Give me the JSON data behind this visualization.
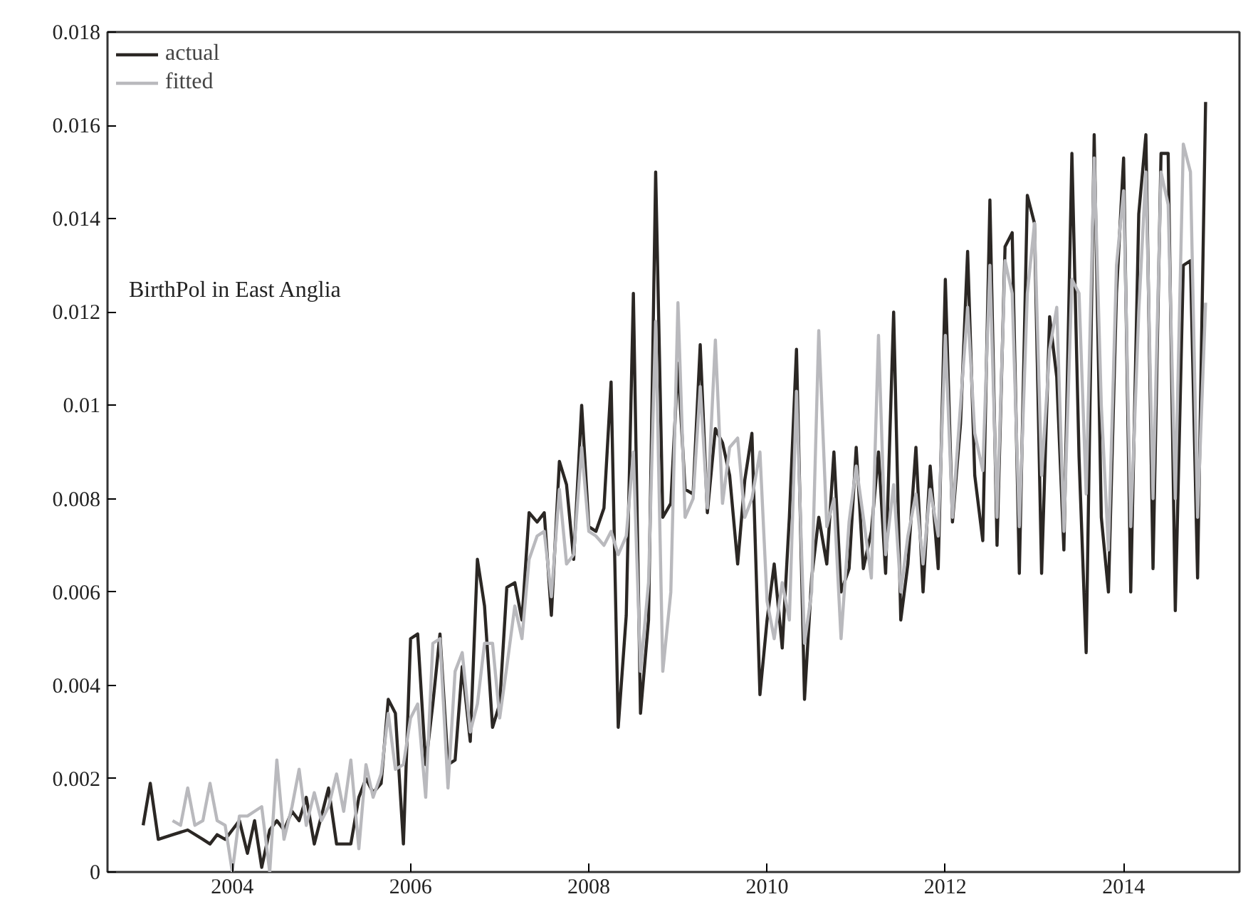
{
  "chart_data": {
    "type": "line",
    "annotations": [
      "BirthPol in East Anglia"
    ],
    "xlim": [
      2002.6,
      2015.3
    ],
    "xticks": [
      2004,
      2006,
      2008,
      2010,
      2012,
      2014
    ],
    "ylim": [
      0,
      0.018
    ],
    "yticks": [
      0,
      0.002,
      0.004,
      0.006,
      0.008,
      0.01,
      0.012,
      0.014,
      0.016,
      0.018
    ],
    "grid": false,
    "legend": "top left",
    "line_style": "solid",
    "marker": "none",
    "series": [
      {
        "name": "actual",
        "color": "#2b2724",
        "x": [
          2003.0,
          2003.08,
          2003.17,
          2003.33,
          2003.5,
          2003.67,
          2003.75,
          2003.83,
          2003.92,
          2004.0,
          2004.08,
          2004.17,
          2004.25,
          2004.33,
          2004.42,
          2004.5,
          2004.58,
          2004.67,
          2004.75,
          2004.83,
          2004.92,
          2005.0,
          2005.08,
          2005.17,
          2005.25,
          2005.33,
          2005.42,
          2005.5,
          2005.58,
          2005.67,
          2005.75,
          2005.83,
          2005.92,
          2006.0,
          2006.08,
          2006.17,
          2006.25,
          2006.33,
          2006.42,
          2006.5,
          2006.58,
          2006.67,
          2006.75,
          2006.83,
          2006.92,
          2007.0,
          2007.08,
          2007.17,
          2007.25,
          2007.33,
          2007.42,
          2007.5,
          2007.58,
          2007.67,
          2007.75,
          2007.83,
          2007.92,
          2008.0,
          2008.08,
          2008.17,
          2008.25,
          2008.33,
          2008.42,
          2008.5,
          2008.58,
          2008.67,
          2008.75,
          2008.83,
          2008.92,
          2009.0,
          2009.08,
          2009.17,
          2009.25,
          2009.33,
          2009.42,
          2009.5,
          2009.58,
          2009.67,
          2009.75,
          2009.83,
          2009.92,
          2010.0,
          2010.08,
          2010.17,
          2010.25,
          2010.33,
          2010.42,
          2010.5,
          2010.58,
          2010.67,
          2010.75,
          2010.83,
          2010.92,
          2011.0,
          2011.08,
          2011.17,
          2011.25,
          2011.33,
          2011.42,
          2011.5,
          2011.58,
          2011.67,
          2011.75,
          2011.83,
          2011.92,
          2012.0,
          2012.08,
          2012.17,
          2012.25,
          2012.33,
          2012.42,
          2012.5,
          2012.58,
          2012.67,
          2012.75,
          2012.83,
          2012.92,
          2013.0,
          2013.08,
          2013.17,
          2013.25,
          2013.33,
          2013.42,
          2013.5,
          2013.58,
          2013.67,
          2013.75,
          2013.83,
          2013.92,
          2014.0,
          2014.08,
          2014.17,
          2014.25,
          2014.33,
          2014.42,
          2014.5,
          2014.58,
          2014.67,
          2014.75,
          2014.83,
          2014.92
        ],
        "values": [
          0.001,
          0.0019,
          0.0007,
          0.0008,
          0.0009,
          0.0007,
          0.0006,
          0.0008,
          0.0007,
          0.0009,
          0.0011,
          0.0004,
          0.0011,
          0.0001,
          0.0009,
          0.0011,
          0.0009,
          0.0013,
          0.0011,
          0.0016,
          0.0006,
          0.0012,
          0.0018,
          0.0006,
          0.0006,
          0.0006,
          0.0016,
          0.002,
          0.0017,
          0.0019,
          0.0037,
          0.0034,
          0.0006,
          0.005,
          0.0051,
          0.0023,
          0.0036,
          0.0051,
          0.0023,
          0.0024,
          0.0044,
          0.0028,
          0.0067,
          0.0057,
          0.0031,
          0.0036,
          0.0061,
          0.0062,
          0.0054,
          0.0077,
          0.0075,
          0.0077,
          0.0055,
          0.0088,
          0.0083,
          0.0067,
          0.01,
          0.0074,
          0.0073,
          0.0078,
          0.0105,
          0.0031,
          0.0055,
          0.0124,
          0.0034,
          0.0054,
          0.015,
          0.0076,
          0.0079,
          0.0109,
          0.0082,
          0.0081,
          0.0113,
          0.0077,
          0.0095,
          0.0092,
          0.0085,
          0.0066,
          0.0084,
          0.0094,
          0.0038,
          0.0054,
          0.0066,
          0.0048,
          0.0076,
          0.0112,
          0.0037,
          0.0063,
          0.0076,
          0.0066,
          0.009,
          0.006,
          0.0065,
          0.0091,
          0.0065,
          0.0073,
          0.009,
          0.0064,
          0.012,
          0.0054,
          0.0066,
          0.0091,
          0.006,
          0.0087,
          0.0065,
          0.0127,
          0.0075,
          0.0096,
          0.0133,
          0.0085,
          0.0071,
          0.0144,
          0.007,
          0.0134,
          0.0137,
          0.0064,
          0.0145,
          0.0139,
          0.0064,
          0.0119,
          0.0106,
          0.0069,
          0.0154,
          0.0089,
          0.0047,
          0.0158,
          0.0076,
          0.006,
          0.0124,
          0.0153,
          0.006,
          0.0141,
          0.0158,
          0.0065,
          0.0154,
          0.0154,
          0.0056,
          0.013,
          0.0131,
          0.0063,
          0.0165
        ]
      },
      {
        "name": "fitted",
        "color": "#b9b9bd",
        "x": [
          2003.33,
          2003.42,
          2003.5,
          2003.58,
          2003.67,
          2003.75,
          2003.83,
          2003.92,
          2004.0,
          2004.08,
          2004.17,
          2004.25,
          2004.33,
          2004.42,
          2004.5,
          2004.58,
          2004.67,
          2004.75,
          2004.83,
          2004.92,
          2005.0,
          2005.08,
          2005.17,
          2005.25,
          2005.33,
          2005.42,
          2005.5,
          2005.58,
          2005.67,
          2005.75,
          2005.83,
          2005.92,
          2006.0,
          2006.08,
          2006.17,
          2006.25,
          2006.33,
          2006.42,
          2006.5,
          2006.58,
          2006.67,
          2006.75,
          2006.83,
          2006.92,
          2007.0,
          2007.08,
          2007.17,
          2007.25,
          2007.33,
          2007.42,
          2007.5,
          2007.58,
          2007.67,
          2007.75,
          2007.83,
          2007.92,
          2008.0,
          2008.08,
          2008.17,
          2008.25,
          2008.33,
          2008.42,
          2008.5,
          2008.58,
          2008.67,
          2008.75,
          2008.83,
          2008.92,
          2009.0,
          2009.08,
          2009.17,
          2009.25,
          2009.33,
          2009.42,
          2009.5,
          2009.58,
          2009.67,
          2009.75,
          2009.83,
          2009.92,
          2010.0,
          2010.08,
          2010.17,
          2010.25,
          2010.33,
          2010.42,
          2010.5,
          2010.58,
          2010.67,
          2010.75,
          2010.83,
          2010.92,
          2011.0,
          2011.08,
          2011.17,
          2011.25,
          2011.33,
          2011.42,
          2011.5,
          2011.58,
          2011.67,
          2011.75,
          2011.83,
          2011.92,
          2012.0,
          2012.08,
          2012.17,
          2012.25,
          2012.33,
          2012.42,
          2012.5,
          2012.58,
          2012.67,
          2012.75,
          2012.83,
          2012.92,
          2013.0,
          2013.08,
          2013.17,
          2013.25,
          2013.33,
          2013.42,
          2013.5,
          2013.58,
          2013.67,
          2013.75,
          2013.83,
          2013.92,
          2014.0,
          2014.08,
          2014.17,
          2014.25,
          2014.33,
          2014.42,
          2014.5,
          2014.58,
          2014.67,
          2014.75,
          2014.83,
          2014.92
        ],
        "values": [
          0.0011,
          0.001,
          0.0018,
          0.001,
          0.0011,
          0.0019,
          0.0011,
          0.001,
          0.0,
          0.0012,
          0.0012,
          0.0013,
          0.0014,
          0.0,
          0.0024,
          0.0007,
          0.0014,
          0.0022,
          0.001,
          0.0017,
          0.0011,
          0.0014,
          0.0021,
          0.0013,
          0.0024,
          0.0005,
          0.0023,
          0.0016,
          0.0021,
          0.0034,
          0.0022,
          0.0023,
          0.0033,
          0.0036,
          0.0016,
          0.0049,
          0.005,
          0.0018,
          0.0043,
          0.0047,
          0.003,
          0.0036,
          0.0049,
          0.0049,
          0.0033,
          0.0044,
          0.0057,
          0.005,
          0.0067,
          0.0072,
          0.0073,
          0.0059,
          0.0082,
          0.0066,
          0.0068,
          0.0091,
          0.0073,
          0.0072,
          0.007,
          0.0073,
          0.0068,
          0.0072,
          0.009,
          0.0043,
          0.0062,
          0.0118,
          0.0043,
          0.006,
          0.0122,
          0.0076,
          0.008,
          0.0104,
          0.0078,
          0.0114,
          0.0079,
          0.0091,
          0.0093,
          0.0076,
          0.008,
          0.009,
          0.0058,
          0.005,
          0.0062,
          0.0054,
          0.0103,
          0.0049,
          0.006,
          0.0116,
          0.0074,
          0.008,
          0.005,
          0.0075,
          0.0087,
          0.0076,
          0.0063,
          0.0115,
          0.0068,
          0.0083,
          0.006,
          0.0072,
          0.0081,
          0.0066,
          0.0082,
          0.0072,
          0.0115,
          0.0076,
          0.01,
          0.0121,
          0.0094,
          0.0086,
          0.013,
          0.0076,
          0.0131,
          0.0124,
          0.0074,
          0.0124,
          0.0139,
          0.0085,
          0.0112,
          0.0121,
          0.0073,
          0.0127,
          0.0124,
          0.0081,
          0.0153,
          0.01,
          0.0069,
          0.013,
          0.0146,
          0.0074,
          0.012,
          0.015,
          0.008,
          0.015,
          0.0143,
          0.008,
          0.0156,
          0.015,
          0.0076,
          0.0122
        ]
      }
    ]
  }
}
